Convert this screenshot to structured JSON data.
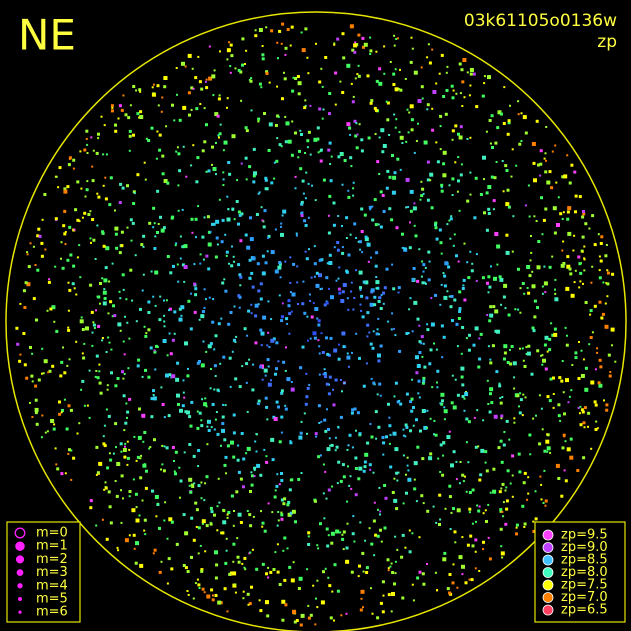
{
  "direction": "NE",
  "header": {
    "frame_id": "03k61105o0136w",
    "color_key": "zp"
  },
  "magnitude_legend": [
    "m=0",
    "m=1",
    "m=2",
    "m=3",
    "m=4",
    "m=5",
    "m=6"
  ],
  "zp_legend": [
    "zp=9.5",
    "zp=9.0",
    "zp=8.5",
    "zp=8.0",
    "zp=7.5",
    "zp=7.0",
    "zp=6.5"
  ]
}
